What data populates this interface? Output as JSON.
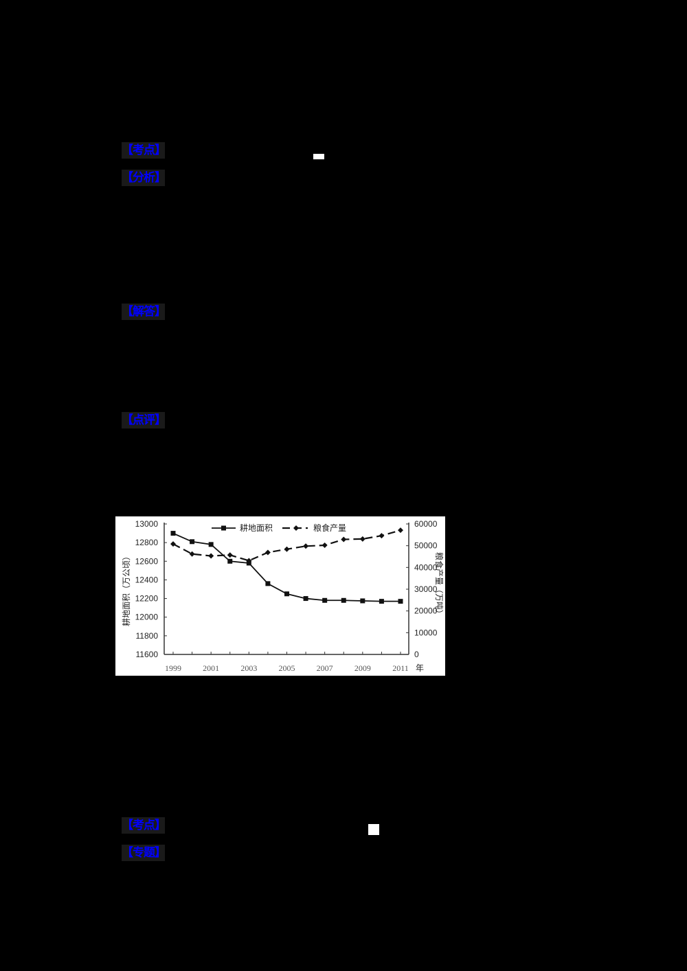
{
  "sections": {
    "q1_kaodian": "【考点】",
    "q1_fenxi": "【分析】",
    "q1_jieda": "【解答】",
    "q1_dianping": "【点评】",
    "q2_kaodian": "【考点】",
    "q2_zhuanti": "【专题】"
  },
  "colors": {
    "background": "#000000",
    "tag_text": "#0000ff",
    "tag_bg": "#1a1a1a",
    "chart_bg": "#ffffff"
  },
  "chart_data": {
    "type": "line",
    "title": "",
    "x": [
      1999,
      2000,
      2001,
      2002,
      2003,
      2004,
      2005,
      2006,
      2007,
      2008,
      2009,
      2010,
      2011
    ],
    "x_tick_labels": [
      "1999",
      "2001",
      "2003",
      "2005",
      "2007",
      "2009",
      "2011"
    ],
    "x_unit": "年",
    "xlabel": "",
    "series": [
      {
        "name": "耕地面积",
        "axis": "left",
        "style": "solid",
        "marker": "square",
        "values": [
          12900,
          12810,
          12780,
          12600,
          12580,
          12360,
          12250,
          12200,
          12180,
          12180,
          12175,
          12170,
          12170
        ]
      },
      {
        "name": "粮食产量",
        "axis": "right",
        "style": "dashed",
        "marker": "diamond",
        "values": [
          50800,
          46200,
          45300,
          45700,
          43100,
          46900,
          48400,
          49800,
          50200,
          52900,
          53100,
          54600,
          57100
        ]
      }
    ],
    "ylabel_left": "耕地面积（万公顷）",
    "ylabel_right": "粮食产量（万吨）",
    "ylim_left": [
      11600,
      13000
    ],
    "yticks_left": [
      "13000",
      "12800",
      "12600",
      "12400",
      "12200",
      "12000",
      "11800",
      "11600"
    ],
    "ylim_right": [
      0,
      60000
    ],
    "yticks_right": [
      "60000",
      "50000",
      "40000",
      "30000",
      "20000",
      "10000",
      "0"
    ],
    "legend_position": "top-inside",
    "grid": false
  }
}
